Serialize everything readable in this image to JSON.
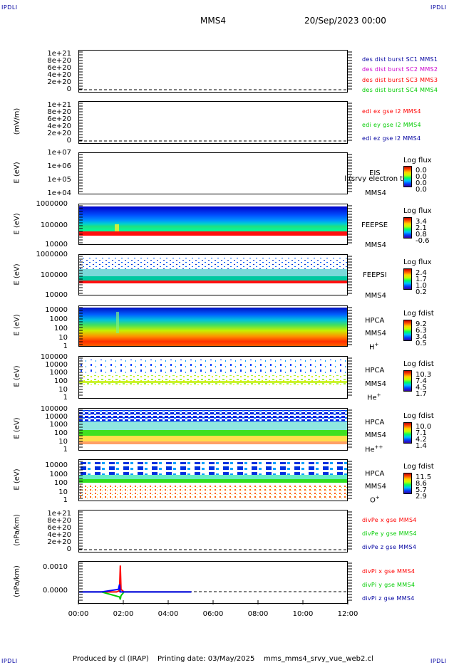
{
  "corners": {
    "tl": "IPDLI",
    "tr": "IPDLI",
    "bl": "IPDLI",
    "br": "IPDLI"
  },
  "header": {
    "spacecraft": "MMS4",
    "date": "20/Sep/2023 00:00"
  },
  "footer": {
    "produced": "Produced by cl (IRAP)",
    "printed": "Printing date: 03/May/2025",
    "file": "mms_mms4_srvy_vue_web2.cl"
  },
  "colors": {
    "red": "#ff0000",
    "green": "#00cc00",
    "blue": "#0000ff",
    "magenta": "#cc00cc",
    "dark_blue": "#0000a0"
  },
  "panels": {
    "p1": {
      "yticks": [
        "1e+21",
        "8e+20",
        "6e+20",
        "4e+20",
        "2e+20",
        "0"
      ],
      "legend": [
        "des dist burst SC1 MMS1",
        "des dist burst SC2 MMS2",
        "des dist burst SC3 MMS3",
        "des dist burst SC4 MMS4"
      ]
    },
    "p2": {
      "ylabel": "(mV/m)",
      "yticks": [
        "1e+21",
        "8e+20",
        "6e+20",
        "4e+20",
        "2e+20",
        "0"
      ],
      "legend": [
        "edi ex gse l2 MMS4",
        "edi ey gse l2 MMS4",
        "edi ez gse l2 MMS4"
      ]
    },
    "p3": {
      "ylabel": "E (eV)",
      "yticks": [
        "1e+07",
        "1e+06",
        "1e+05",
        "1e+04"
      ],
      "inst": "EIS",
      "inst2": "MMS4",
      "overlay": "l (srvy electron to",
      "cb_title": "Log flux",
      "cb_values": [
        "0.0",
        "0.0",
        "0.0",
        "0.0"
      ]
    },
    "p4": {
      "ylabel": "E (eV)",
      "yticks": [
        "1000000",
        "100000",
        "10000"
      ],
      "inst": "FEEPSE",
      "inst2": "MMS4",
      "cb_title": "Log flux",
      "cb_values": [
        "3.4",
        "2.1",
        "0.8",
        "-0.6"
      ]
    },
    "p5": {
      "ylabel": "E (eV)",
      "yticks": [
        "1000000",
        "100000",
        "10000"
      ],
      "inst": "FEEPSI",
      "inst2": "MMS4",
      "cb_title": "Log flux",
      "cb_values": [
        "2.4",
        "1.7",
        "1.0",
        "0.2"
      ]
    },
    "p6": {
      "ylabel": "E (eV)",
      "yticks": [
        "10000",
        "1000",
        "100",
        "10",
        "1"
      ],
      "inst": "HPCA",
      "inst2": "MMS4",
      "species": "H",
      "species_sup": "+",
      "cb_title": "Log fdist",
      "cb_values": [
        "9.2",
        "6.3",
        "3.4",
        "0.5"
      ]
    },
    "p7": {
      "ylabel": "E (eV)",
      "yticks": [
        "100000",
        "10000",
        "1000",
        "100",
        "10",
        "1"
      ],
      "inst": "HPCA",
      "inst2": "MMS4",
      "species": "He",
      "species_sup": "+",
      "cb_title": "Log fdist",
      "cb_values": [
        "10.3",
        "7.4",
        "4.5",
        "1.7"
      ]
    },
    "p8": {
      "ylabel": "E (eV)",
      "yticks": [
        "100000",
        "10000",
        "1000",
        "100",
        "10",
        "1"
      ],
      "inst": "HPCA",
      "inst2": "MMS4",
      "species": "He",
      "species_sup": "++",
      "cb_title": "Log fdist",
      "cb_values": [
        "10.0",
        "7.1",
        "4.2",
        "1.4"
      ]
    },
    "p9": {
      "ylabel": "E (eV)",
      "yticks": [
        "10000",
        "1000",
        "100",
        "10",
        "1"
      ],
      "inst": "HPCA",
      "inst2": "MMS4",
      "species": "O",
      "species_sup": "+",
      "cb_title": "Log fdist",
      "cb_values": [
        "11.5",
        "8.6",
        "5.7",
        "2.9"
      ]
    },
    "p10": {
      "ylabel": "(nPa/km)",
      "yticks": [
        "1e+21",
        "8e+20",
        "6e+20",
        "4e+20",
        "2e+20",
        "0"
      ],
      "legend": [
        "divPe x gse MMS4",
        "divPe y gse MMS4",
        "divPe z gse MMS4"
      ]
    },
    "p11": {
      "ylabel": "(nPa/km)",
      "yticks": [
        "0.0010",
        "0.0000"
      ],
      "legend": [
        "divPi x gse MMS4",
        "divPi y gse MMS4",
        "divPi z gse MMS4"
      ]
    }
  },
  "xaxis": {
    "ticks": [
      "00:00",
      "02:00",
      "04:00",
      "06:00",
      "08:00",
      "10:00",
      "12:00"
    ]
  },
  "chart_data": {
    "type": "line",
    "title": "MMS4 20/Sep/2023 00:00",
    "x_range": [
      "00:00",
      "12:00"
    ],
    "panels": [
      {
        "name": "des dist burst",
        "type": "line",
        "ylim": [
          0,
          1e+21
        ],
        "series": []
      },
      {
        "name": "edi e gse l2",
        "type": "line",
        "ylabel": "(mV/m)",
        "ylim": [
          0,
          1e+21
        ],
        "series": []
      },
      {
        "name": "EIS",
        "type": "heatmap",
        "ylabel": "E (eV)",
        "yscale": "log",
        "ylim": [
          10000.0,
          10000000.0
        ],
        "colorbar": [
          0.0,
          0.0,
          0.0,
          0.0
        ]
      },
      {
        "name": "FEEPSE",
        "type": "heatmap",
        "ylabel": "E (eV)",
        "yscale": "log",
        "ylim": [
          10000.0,
          1000000.0
        ],
        "colorbar": [
          3.4,
          2.1,
          0.8,
          -0.6
        ]
      },
      {
        "name": "FEEPSI",
        "type": "heatmap",
        "ylabel": "E (eV)",
        "yscale": "log",
        "ylim": [
          10000.0,
          1000000.0
        ],
        "colorbar": [
          2.4,
          1.7,
          1.0,
          0.2
        ]
      },
      {
        "name": "HPCA H+",
        "type": "heatmap",
        "ylabel": "E (eV)",
        "yscale": "log",
        "ylim": [
          1,
          10000.0
        ],
        "colorbar": [
          9.2,
          6.3,
          3.4,
          0.5
        ]
      },
      {
        "name": "HPCA He+",
        "type": "heatmap",
        "ylabel": "E (eV)",
        "yscale": "log",
        "ylim": [
          1,
          100000.0
        ],
        "colorbar": [
          10.3,
          7.4,
          4.5,
          1.7
        ]
      },
      {
        "name": "HPCA He++",
        "type": "heatmap",
        "ylabel": "E (eV)",
        "yscale": "log",
        "ylim": [
          1,
          100000.0
        ],
        "colorbar": [
          10.0,
          7.1,
          4.2,
          1.4
        ]
      },
      {
        "name": "HPCA O+",
        "type": "heatmap",
        "ylabel": "E (eV)",
        "yscale": "log",
        "ylim": [
          1,
          10000.0
        ],
        "colorbar": [
          11.5,
          8.6,
          5.7,
          2.9
        ]
      },
      {
        "name": "divPe gse",
        "type": "line",
        "ylabel": "(nPa/km)",
        "ylim": [
          0,
          1e+21
        ],
        "series": []
      },
      {
        "name": "divPi gse",
        "type": "line",
        "ylabel": "(nPa/km)",
        "ylim": [
          -0.0005,
          0.0012
        ],
        "series": [
          {
            "name": "divPi x gse MMS4",
            "color": "#ff0000",
            "x": [
              "00:00",
              "01:00",
              "01:40",
              "01:48",
              "01:50",
              "01:52",
              "02:00",
              "03:00",
              "04:00",
              "05:00"
            ],
            "values": [
              0.0,
              0.0,
              0.0,
              5e-05,
              0.00105,
              0.0001,
              0.0,
              0.0,
              0.0,
              0.0
            ]
          },
          {
            "name": "divPi y gse MMS4",
            "color": "#00cc00",
            "x": [
              "00:00",
              "01:00",
              "01:48",
              "01:50",
              "01:52",
              "02:00",
              "03:00",
              "04:00",
              "05:00"
            ],
            "values": [
              0.0,
              0.0,
              -0.0002,
              -0.0003,
              -0.00015,
              0.0,
              0.0,
              0.0,
              0.0
            ]
          },
          {
            "name": "divPi z gse MMS4",
            "color": "#0000ff",
            "x": [
              "00:00",
              "01:00",
              "01:45",
              "01:48",
              "01:50",
              "02:00",
              "03:00",
              "04:00",
              "05:00"
            ],
            "values": [
              0.0,
              0.0,
              0.0001,
              0.0003,
              0.0,
              0.0,
              0.0,
              0.0,
              0.0
            ]
          }
        ]
      }
    ]
  }
}
